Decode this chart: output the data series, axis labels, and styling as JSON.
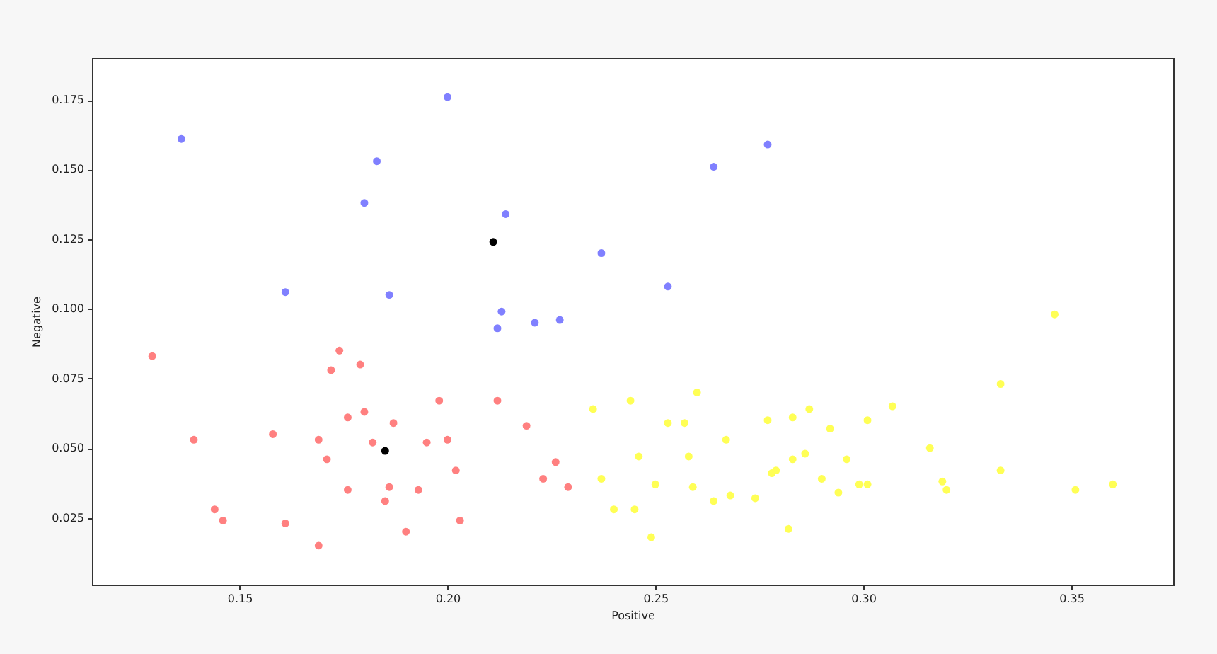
{
  "chart_data": {
    "type": "scatter",
    "xlabel": "Positive",
    "ylabel": "Negative",
    "marker": "circle",
    "grid": false,
    "xlim": [
      0.1145,
      0.3745
    ],
    "ylim": [
      0.001,
      0.19
    ],
    "xticks": [
      0.15,
      {
        "value": 0.2,
        "label": "0.20"
      },
      0.25,
      {
        "value": 0.3,
        "label": "0.30"
      },
      0.35
    ],
    "yticks": [
      0.025,
      {
        "value": 0.05,
        "label": "0.050"
      },
      0.075,
      {
        "value": 0.1,
        "label": "0.100"
      },
      0.125,
      {
        "value": 0.15,
        "label": "0.150"
      },
      0.175
    ],
    "series": [
      {
        "color": "#8080ff",
        "x": [
          0.2,
          0.136,
          0.183,
          0.18,
          0.161,
          0.186,
          0.214,
          0.277,
          0.264,
          0.237,
          0.253,
          0.227,
          0.213,
          0.221,
          0.212
        ],
        "values": [
          0.176,
          0.161,
          0.153,
          0.138,
          0.106,
          0.105,
          0.134,
          0.159,
          0.151,
          0.12,
          0.108,
          0.096,
          0.099,
          0.095,
          0.093
        ]
      },
      {
        "color": "#ff8080",
        "x": [
          0.129,
          0.139,
          0.158,
          0.169,
          0.171,
          0.172,
          0.174,
          0.176,
          0.176,
          0.146,
          0.144,
          0.161,
          0.169,
          0.179,
          0.198,
          0.212,
          0.18,
          0.187,
          0.182,
          0.2,
          0.195,
          0.219,
          0.202,
          0.226,
          0.223,
          0.229,
          0.193,
          0.185,
          0.186,
          0.19,
          0.203
        ],
        "values": [
          0.083,
          0.053,
          0.055,
          0.053,
          0.046,
          0.078,
          0.085,
          0.061,
          0.035,
          0.024,
          0.028,
          0.023,
          0.015,
          0.08,
          0.067,
          0.067,
          0.063,
          0.059,
          0.052,
          0.053,
          0.052,
          0.058,
          0.042,
          0.045,
          0.039,
          0.036,
          0.035,
          0.031,
          0.036,
          0.02,
          0.024
        ]
      },
      {
        "color": "#ffff55",
        "x": [
          0.235,
          0.244,
          0.26,
          0.253,
          0.257,
          0.267,
          0.246,
          0.258,
          0.237,
          0.25,
          0.245,
          0.24,
          0.249,
          0.282,
          0.274,
          0.264,
          0.268,
          0.259,
          0.277,
          0.283,
          0.287,
          0.292,
          0.278,
          0.279,
          0.283,
          0.286,
          0.29,
          0.294,
          0.346,
          0.333,
          0.307,
          0.301,
          0.316,
          0.333,
          0.351,
          0.36,
          0.32,
          0.319,
          0.299,
          0.301,
          0.296
        ],
        "values": [
          0.064,
          0.067,
          0.07,
          0.059,
          0.059,
          0.053,
          0.047,
          0.047,
          0.039,
          0.037,
          0.028,
          0.028,
          0.018,
          0.021,
          0.032,
          0.031,
          0.033,
          0.036,
          0.06,
          0.061,
          0.064,
          0.057,
          0.041,
          0.042,
          0.046,
          0.048,
          0.039,
          0.034,
          0.098,
          0.073,
          0.065,
          0.06,
          0.05,
          0.042,
          0.035,
          0.037,
          0.035,
          0.038,
          0.037,
          0.037,
          0.046
        ]
      },
      {
        "color": "#000000",
        "x": [
          0.211,
          0.185
        ],
        "values": [
          0.124,
          0.049
        ]
      }
    ]
  }
}
